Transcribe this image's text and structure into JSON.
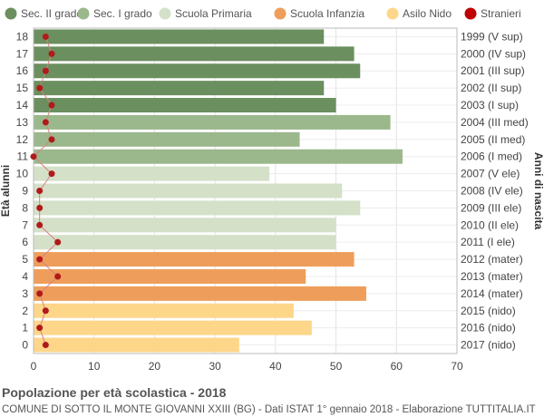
{
  "chart_data": {
    "type": "bar",
    "orientation": "horizontal",
    "title": "Popolazione per età scolastica - 2018",
    "subtitle": "COMUNE DI SOTTO IL MONTE GIOVANNI XXIII (BG) - Dati ISTAT 1° gennaio 2018 - Elaborazione TUTTITALIA.IT",
    "ylabel_left": "Età alunni",
    "ylabel_right": "Anni di nascita",
    "xlim": [
      0,
      70
    ],
    "xticks": [
      0,
      10,
      20,
      30,
      40,
      50,
      60,
      70
    ],
    "grid": true,
    "legend_position": "top",
    "legend": [
      {
        "name": "Sec. II grado",
        "color": "#6b8f5e"
      },
      {
        "name": "Sec. I grado",
        "color": "#9bb88c"
      },
      {
        "name": "Scuola Primaria",
        "color": "#d4e0c8"
      },
      {
        "name": "Scuola Infanzia",
        "color": "#ee9e5a"
      },
      {
        "name": "Asilo Nido",
        "color": "#fdd68a"
      },
      {
        "name": "Stranieri",
        "color": "#c00000"
      }
    ],
    "rows": [
      {
        "age": "18",
        "year": "1999 (V sup)",
        "value": 48,
        "stranieri": 2,
        "group": 0
      },
      {
        "age": "17",
        "year": "2000 (IV sup)",
        "value": 53,
        "stranieri": 3,
        "group": 0
      },
      {
        "age": "16",
        "year": "2001 (III sup)",
        "value": 54,
        "stranieri": 2,
        "group": 0
      },
      {
        "age": "15",
        "year": "2002 (II sup)",
        "value": 48,
        "stranieri": 1,
        "group": 0
      },
      {
        "age": "14",
        "year": "2003 (I sup)",
        "value": 50,
        "stranieri": 3,
        "group": 0
      },
      {
        "age": "13",
        "year": "2004 (III med)",
        "value": 59,
        "stranieri": 2,
        "group": 1
      },
      {
        "age": "12",
        "year": "2005 (II med)",
        "value": 44,
        "stranieri": 3,
        "group": 1
      },
      {
        "age": "11",
        "year": "2006 (I med)",
        "value": 61,
        "stranieri": 0,
        "group": 1
      },
      {
        "age": "10",
        "year": "2007 (V ele)",
        "value": 39,
        "stranieri": 3,
        "group": 2
      },
      {
        "age": "9",
        "year": "2008 (IV ele)",
        "value": 51,
        "stranieri": 1,
        "group": 2
      },
      {
        "age": "8",
        "year": "2009 (III ele)",
        "value": 54,
        "stranieri": 1,
        "group": 2
      },
      {
        "age": "7",
        "year": "2010 (II ele)",
        "value": 50,
        "stranieri": 1,
        "group": 2
      },
      {
        "age": "6",
        "year": "2011 (I ele)",
        "value": 50,
        "stranieri": 4,
        "group": 2
      },
      {
        "age": "5",
        "year": "2012 (mater)",
        "value": 53,
        "stranieri": 1,
        "group": 3
      },
      {
        "age": "4",
        "year": "2013 (mater)",
        "value": 45,
        "stranieri": 4,
        "group": 3
      },
      {
        "age": "3",
        "year": "2014 (mater)",
        "value": 55,
        "stranieri": 1,
        "group": 3
      },
      {
        "age": "2",
        "year": "2015 (nido)",
        "value": 43,
        "stranieri": 2,
        "group": 4
      },
      {
        "age": "1",
        "year": "2016 (nido)",
        "value": 46,
        "stranieri": 1,
        "group": 4
      },
      {
        "age": "0",
        "year": "2017 (nido)",
        "value": 34,
        "stranieri": 2,
        "group": 4
      }
    ]
  }
}
